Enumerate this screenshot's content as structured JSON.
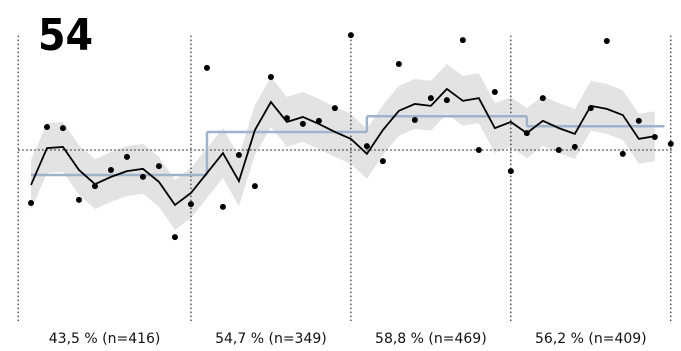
{
  "chart_data": {
    "type": "line",
    "title": "54",
    "x": [
      0,
      1,
      2,
      3,
      4,
      5,
      6,
      7,
      8,
      9,
      10,
      11,
      12,
      13,
      14,
      15,
      16,
      17,
      18,
      19,
      20,
      21,
      22,
      23,
      24,
      25,
      26,
      27,
      28,
      29,
      30,
      31,
      32,
      33,
      34,
      35,
      36,
      37,
      38,
      39,
      40
    ],
    "xlim": [
      -0.8,
      40.2
    ],
    "ylim": [
      5,
      85
    ],
    "reference": 50,
    "bounds": [
      -0.8,
      10,
      20,
      30,
      40
    ],
    "points": {
      "color": "#000000",
      "values": [
        36.2,
        56.0,
        55.7,
        37.0,
        40.6,
        44.8,
        48.2,
        43.0,
        45.8,
        27.3,
        35.9,
        71.4,
        35.2,
        48.7,
        40.6,
        69.0,
        58.3,
        56.8,
        57.6,
        60.9,
        79.9,
        51.0,
        47.1,
        72.4,
        57.8,
        63.5,
        63.0,
        78.6,
        50.0,
        65.1,
        44.5,
        54.4,
        63.5,
        50.0,
        50.8,
        60.9,
        78.4,
        49.0,
        57.6,
        53.4,
        51.6
      ]
    },
    "trend": {
      "color": "#000000",
      "values": [
        40.9,
        50.5,
        50.8,
        44.8,
        41.1,
        43.0,
        44.5,
        45.1,
        41.7,
        35.7,
        38.8,
        44.0,
        49.2,
        41.9,
        55.2,
        62.5,
        57.3,
        58.6,
        56.8,
        54.7,
        52.9,
        49.0,
        55.2,
        60.2,
        62.0,
        61.5,
        65.9,
        62.8,
        63.5,
        55.7,
        57.3,
        54.4,
        57.6,
        55.7,
        54.2,
        61.5,
        60.7,
        59.1,
        52.9,
        53.6,
        null
      ]
    },
    "band": {
      "color": "#e3e3e3",
      "upper": [
        47.4,
        57.0,
        57.3,
        51.3,
        47.6,
        49.5,
        51.0,
        51.6,
        48.2,
        42.2,
        45.3,
        50.5,
        55.7,
        48.4,
        61.7,
        69.0,
        63.8,
        65.1,
        63.3,
        61.2,
        59.4,
        55.5,
        61.7,
        66.7,
        68.5,
        68.0,
        72.4,
        69.3,
        70.0,
        62.2,
        63.8,
        60.9,
        64.1,
        62.2,
        60.7,
        68.0,
        67.2,
        65.6,
        59.4,
        60.1,
        null
      ],
      "lower": [
        34.4,
        44.0,
        44.3,
        38.3,
        34.6,
        36.5,
        38.0,
        38.6,
        35.2,
        29.2,
        32.3,
        37.5,
        42.7,
        35.4,
        48.7,
        56.0,
        50.8,
        52.1,
        50.3,
        48.2,
        46.4,
        42.5,
        48.7,
        53.7,
        55.5,
        55.0,
        59.4,
        56.3,
        57.0,
        49.2,
        50.8,
        47.9,
        51.1,
        49.2,
        47.7,
        55.0,
        54.2,
        52.6,
        46.4,
        47.1,
        null
      ]
    },
    "mean_color": "#9fb3cc",
    "periods": [
      {
        "label": "43,5 % (n=416)",
        "value": 43.5,
        "from": 0,
        "to": 11
      },
      {
        "label": "54,7 % (n=349)",
        "value": 54.7,
        "from": 11,
        "to": 21
      },
      {
        "label": "58,8 % (n=469)",
        "value": 58.8,
        "from": 21,
        "to": 31
      },
      {
        "label": "56,2 % (n=409)",
        "value": 56.2,
        "from": 31,
        "to": 39.6
      }
    ]
  }
}
